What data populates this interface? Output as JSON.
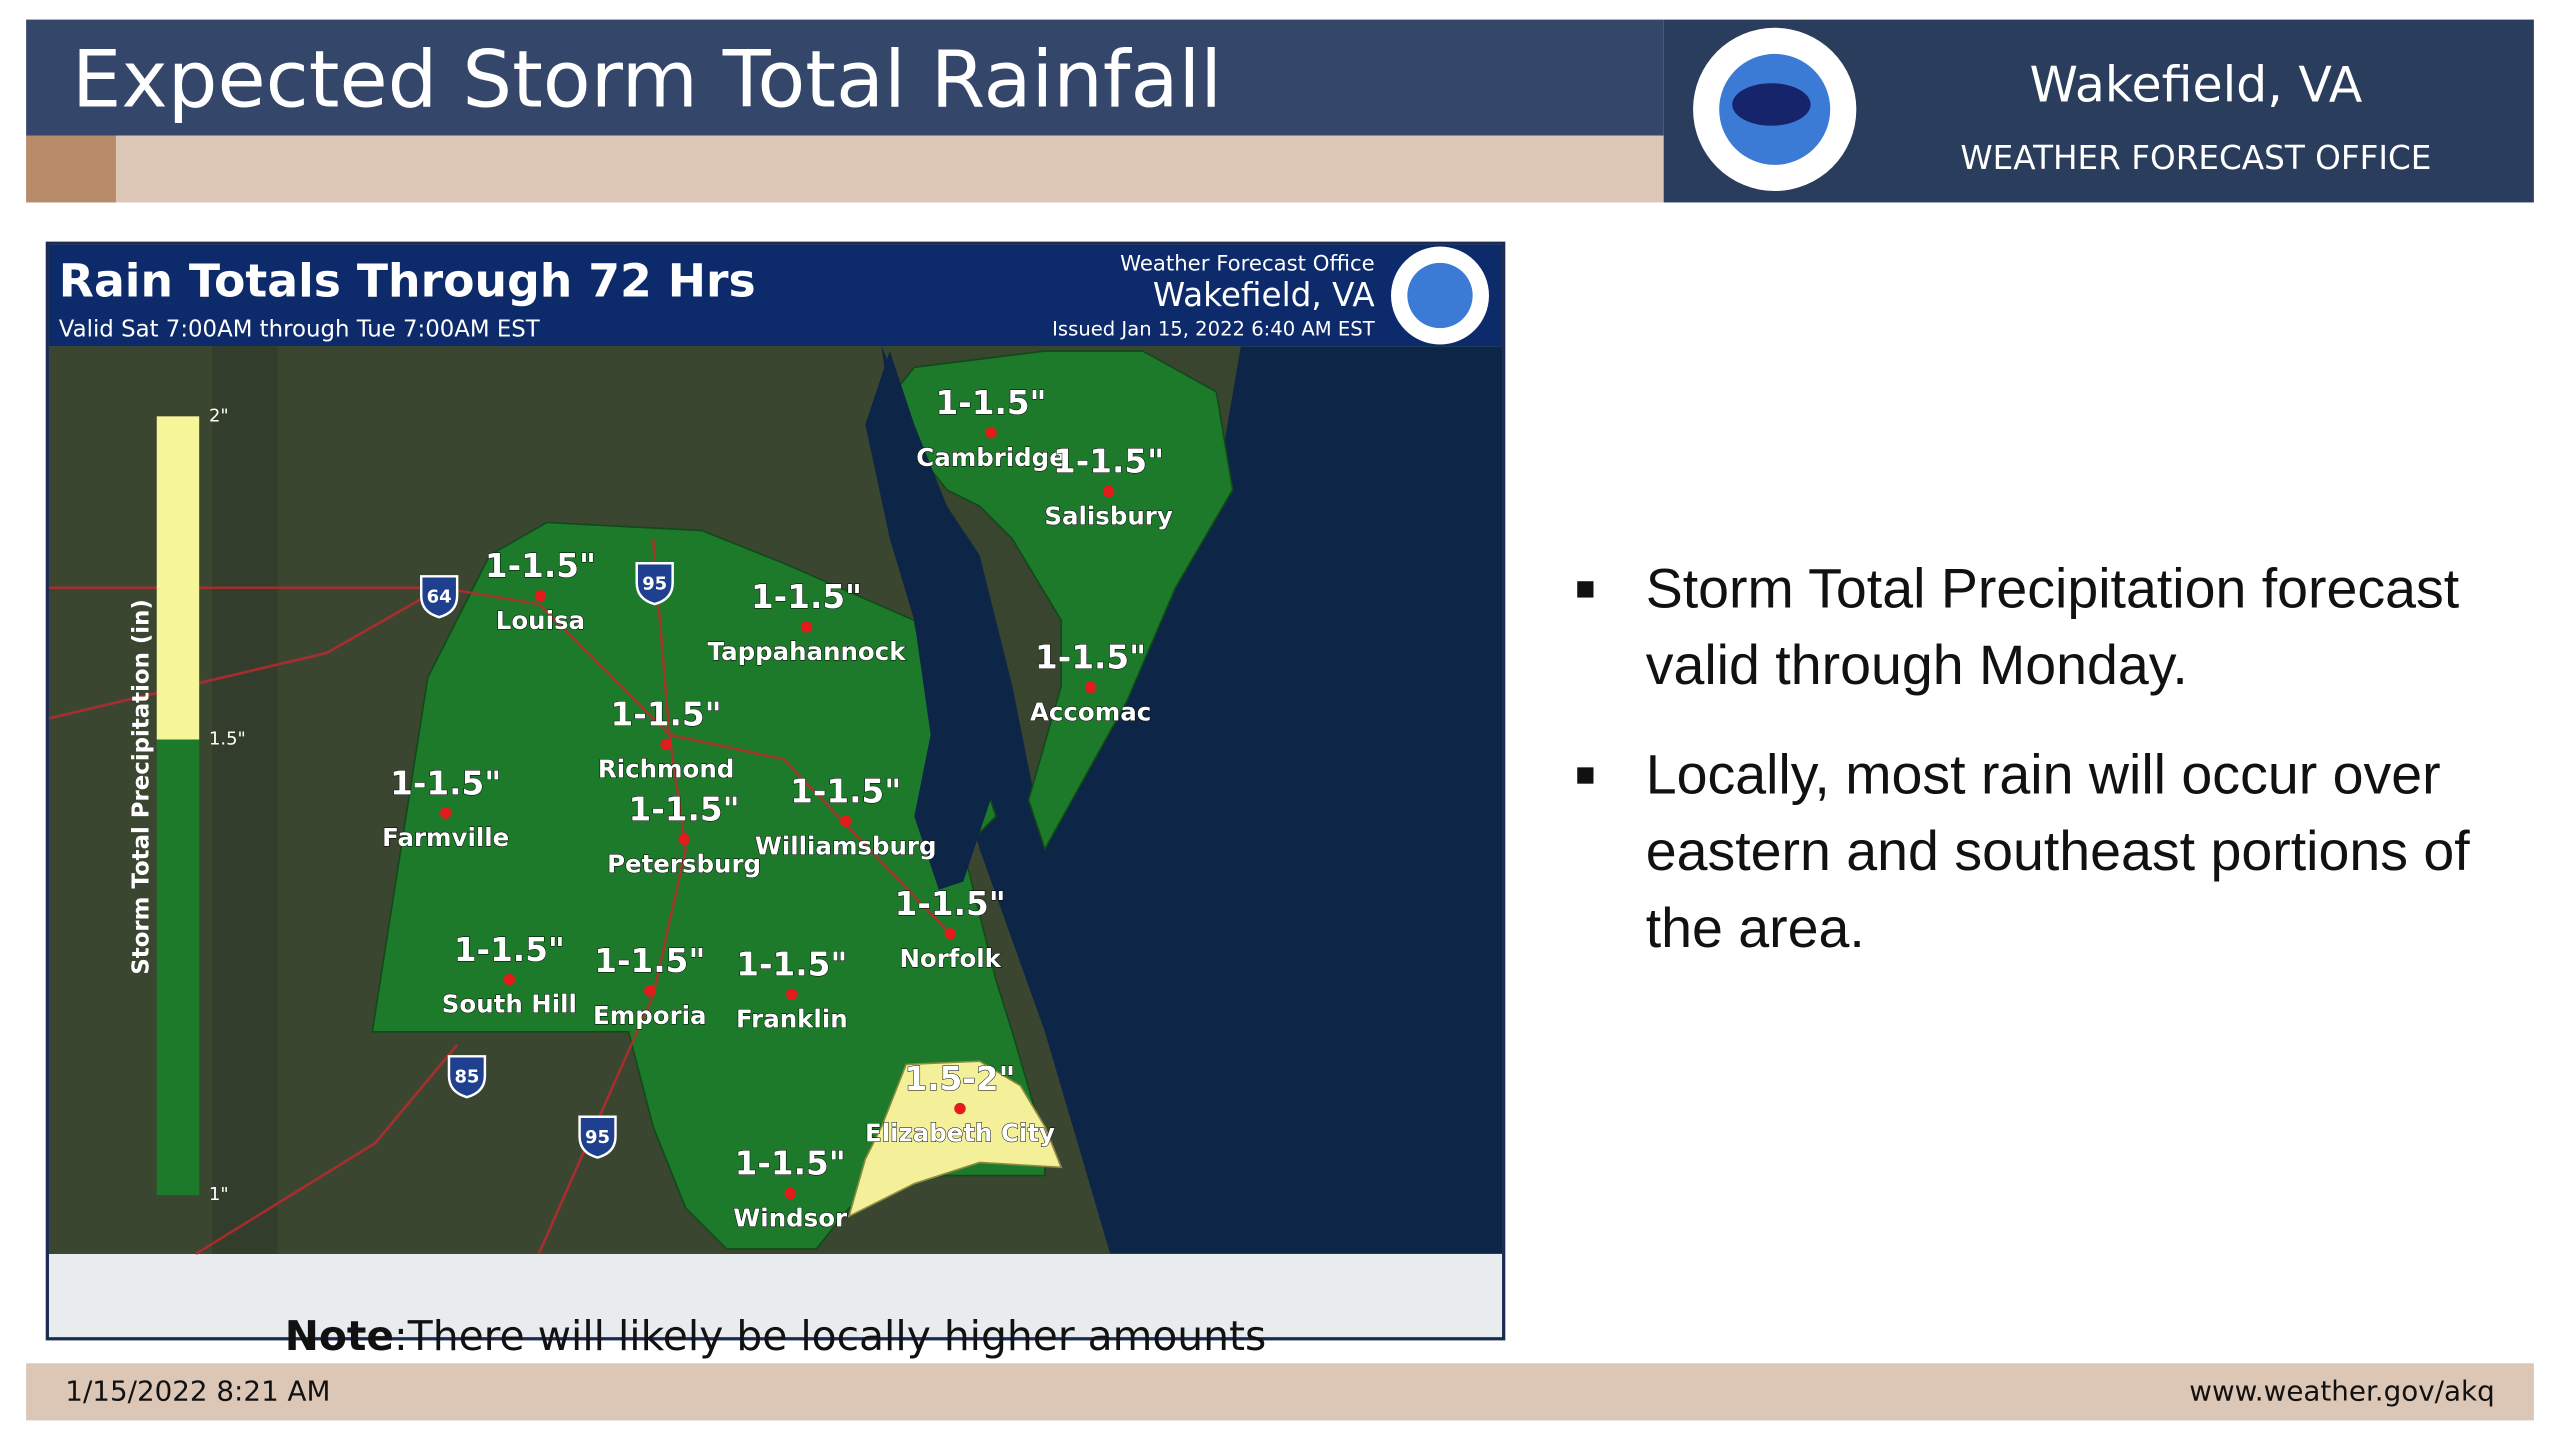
{
  "header": {
    "title": "Expected Storm Total Rainfall",
    "office": "Wakefield, VA",
    "office_subtitle": "WEATHER FORECAST OFFICE"
  },
  "map": {
    "title": "Rain Totals Through 72 Hrs",
    "valid": "Valid Sat 7:00AM through Tue 7:00AM EST",
    "office_label": "Weather Forecast Office",
    "office": "Wakefield, VA",
    "issued": "Issued Jan 15, 2022 6:40 AM EST",
    "legend": {
      "title": "Storm Total Precipitation (in)",
      "labels": [
        "2\"",
        "1.5\"",
        "1\""
      ]
    },
    "shields": [
      "64",
      "95",
      "85",
      "95"
    ],
    "locations": [
      {
        "amount": "1-1.5\"",
        "name": "Cambridge"
      },
      {
        "amount": "1-1.5\"",
        "name": "Salisbury"
      },
      {
        "amount": "1-1.5\"",
        "name": "Louisa"
      },
      {
        "amount": "1-1.5\"",
        "name": "Tappahannock"
      },
      {
        "amount": "1-1.5\"",
        "name": "Accomac"
      },
      {
        "amount": "1-1.5\"",
        "name": "Richmond"
      },
      {
        "amount": "1-1.5\"",
        "name": "Farmville"
      },
      {
        "amount": "1-1.5\"",
        "name": "Petersburg"
      },
      {
        "amount": "1-1.5\"",
        "name": "Williamsburg"
      },
      {
        "amount": "1-1.5\"",
        "name": "Norfolk"
      },
      {
        "amount": "1-1.5\"",
        "name": "South Hill"
      },
      {
        "amount": "1-1.5\"",
        "name": "Emporia"
      },
      {
        "amount": "1-1.5\"",
        "name": "Franklin"
      },
      {
        "amount": "1.5-2\"",
        "name": "Elizabeth City"
      },
      {
        "amount": "1-1.5\"",
        "name": "Windsor"
      }
    ],
    "note_bold": "Note",
    "note": ":There will likely be locally higher amounts"
  },
  "bullets": [
    "Storm Total Precipitation forecast valid through Monday.",
    "Locally, most rain will occur over eastern and southeast portions of the area."
  ],
  "footer": {
    "date": "1/15/2022 8:21 AM",
    "url": "www.weather.gov/akq"
  }
}
